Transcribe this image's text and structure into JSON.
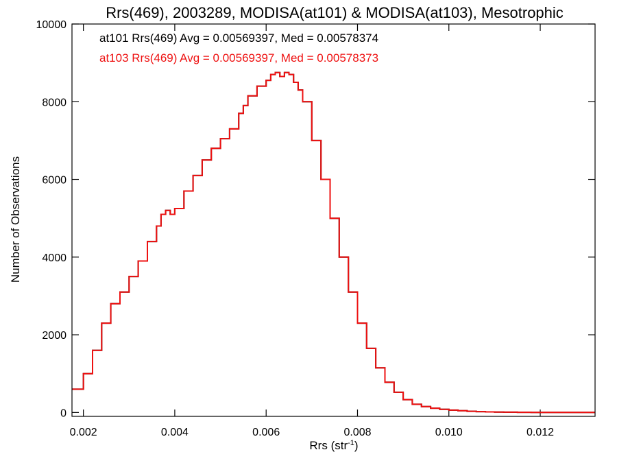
{
  "chart_data": {
    "type": "line",
    "title": "Rrs(469), 2003289, MODISA(at101) & MODISA(at103), Mesotrophic",
    "xlabel": {
      "base": "Rrs (str",
      "sup": "-1",
      "suffix": ")"
    },
    "ylabel": "Number of Observations",
    "xlim": [
      0.00175,
      0.0132
    ],
    "ylim": [
      -100,
      10000
    ],
    "x_ticks": [
      0.002,
      0.004,
      0.006,
      0.008,
      0.01,
      0.012
    ],
    "x_tick_labels": [
      "0.002",
      "0.004",
      "0.006",
      "0.008",
      "0.010",
      "0.012"
    ],
    "y_ticks": [
      0,
      2000,
      4000,
      6000,
      8000,
      10000
    ],
    "y_tick_labels": [
      "0",
      "2000",
      "4000",
      "6000",
      "8000",
      "10000"
    ],
    "grid": false,
    "legend_placement": "top-left",
    "series": [
      {
        "name": "at101",
        "color": "#000000",
        "legend": "at101 Rrs(469) Avg = 0.00569397, Med = 0.00578374",
        "x": [
          0.00175,
          0.002,
          0.0022,
          0.0024,
          0.0026,
          0.0028,
          0.003,
          0.0032,
          0.0034,
          0.0036,
          0.0037,
          0.0038,
          0.0039,
          0.004,
          0.0042,
          0.0044,
          0.0046,
          0.0048,
          0.005,
          0.0052,
          0.0054,
          0.0055,
          0.0056,
          0.0058,
          0.006,
          0.0061,
          0.0062,
          0.0063,
          0.0064,
          0.0065,
          0.0066,
          0.0067,
          0.0068,
          0.007,
          0.0072,
          0.0074,
          0.0076,
          0.0078,
          0.008,
          0.0082,
          0.0084,
          0.0086,
          0.0088,
          0.009,
          0.0092,
          0.0094,
          0.0096,
          0.0098,
          0.01,
          0.0102,
          0.0104,
          0.0106,
          0.0108,
          0.011,
          0.0112,
          0.0115,
          0.0118,
          0.012,
          0.0125,
          0.0132
        ],
        "y": [
          600,
          1000,
          1600,
          2300,
          2800,
          3100,
          3500,
          3900,
          4400,
          4800,
          5100,
          5200,
          5100,
          5250,
          5700,
          6100,
          6500,
          6800,
          7050,
          7300,
          7700,
          7900,
          8150,
          8400,
          8550,
          8700,
          8750,
          8650,
          8750,
          8700,
          8500,
          8300,
          8000,
          7000,
          6000,
          5000,
          4000,
          3100,
          2300,
          1650,
          1150,
          780,
          520,
          330,
          210,
          150,
          110,
          80,
          60,
          45,
          30,
          22,
          15,
          10,
          8,
          5,
          3,
          2,
          1,
          0
        ]
      },
      {
        "name": "at103",
        "color": "#ee1111",
        "legend": "at103 Rrs(469) Avg = 0.00569397, Med = 0.00578373",
        "x": [
          0.00175,
          0.002,
          0.0022,
          0.0024,
          0.0026,
          0.0028,
          0.003,
          0.0032,
          0.0034,
          0.0036,
          0.0037,
          0.0038,
          0.0039,
          0.004,
          0.0042,
          0.0044,
          0.0046,
          0.0048,
          0.005,
          0.0052,
          0.0054,
          0.0055,
          0.0056,
          0.0058,
          0.006,
          0.0061,
          0.0062,
          0.0063,
          0.0064,
          0.0065,
          0.0066,
          0.0067,
          0.0068,
          0.007,
          0.0072,
          0.0074,
          0.0076,
          0.0078,
          0.008,
          0.0082,
          0.0084,
          0.0086,
          0.0088,
          0.009,
          0.0092,
          0.0094,
          0.0096,
          0.0098,
          0.01,
          0.0102,
          0.0104,
          0.0106,
          0.0108,
          0.011,
          0.0112,
          0.0115,
          0.0118,
          0.012,
          0.0125,
          0.0132
        ],
        "y": [
          600,
          1000,
          1600,
          2300,
          2800,
          3100,
          3500,
          3900,
          4400,
          4800,
          5100,
          5200,
          5100,
          5250,
          5700,
          6100,
          6500,
          6800,
          7050,
          7300,
          7700,
          7900,
          8150,
          8400,
          8550,
          8700,
          8750,
          8650,
          8750,
          8700,
          8500,
          8300,
          8000,
          7000,
          6000,
          5000,
          4000,
          3100,
          2300,
          1650,
          1150,
          780,
          520,
          330,
          210,
          150,
          110,
          80,
          60,
          45,
          30,
          22,
          15,
          10,
          8,
          5,
          3,
          2,
          1,
          0
        ]
      }
    ]
  }
}
